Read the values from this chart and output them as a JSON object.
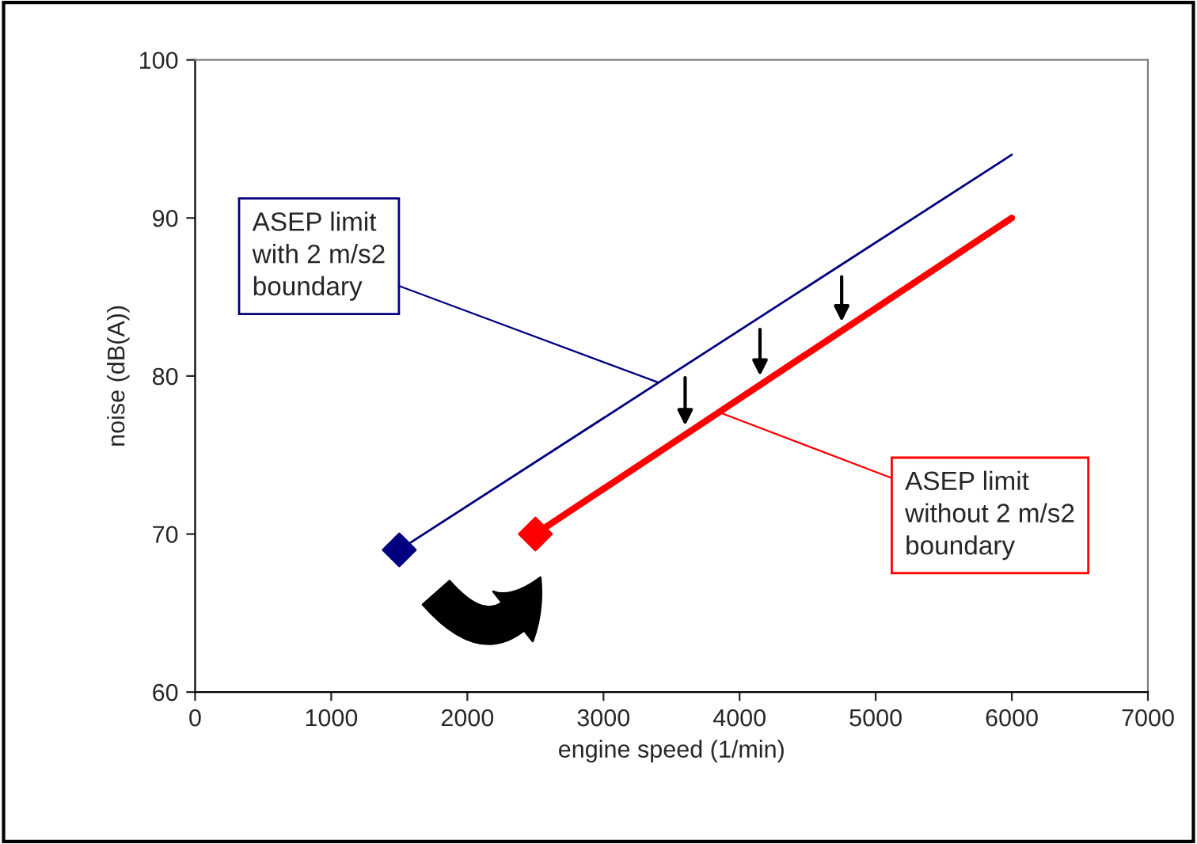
{
  "chart_data": {
    "type": "line",
    "xlabel": "engine speed (1/min)",
    "ylabel": "noise (dB(A))",
    "series": [
      {
        "color": "#000080",
        "x": [
          1500,
          6000
        ],
        "values": [
          69,
          94
        ]
      },
      {
        "color": "#ff0000",
        "x": [
          2500,
          6000
        ],
        "values": [
          70,
          90
        ]
      },
      {
        "type": "scatter",
        "color": "#000080",
        "x": [
          1500
        ],
        "values": [
          69
        ],
        "marker": "diamond"
      },
      {
        "type": "scatter",
        "color": "#ff0000",
        "x": [
          2500
        ],
        "values": [
          70
        ],
        "marker": "diamond"
      }
    ],
    "annotations": [
      {
        "text": "ASEP limit\nwith 2 m/s2\nboundary",
        "x": 3400,
        "y": 79.6
      },
      {
        "text": "ASEP limit\nwithout 2 m/s2\nboundary",
        "x": 3850,
        "y": 77.7
      }
    ],
    "xlim": [
      0,
      7000
    ],
    "xticks": [
      0,
      1000,
      2000,
      3000,
      4000,
      5000,
      6000,
      7000
    ],
    "ylim": [
      60,
      100
    ],
    "yticks": [
      60,
      70,
      80,
      90,
      100
    ],
    "grid": false
  }
}
